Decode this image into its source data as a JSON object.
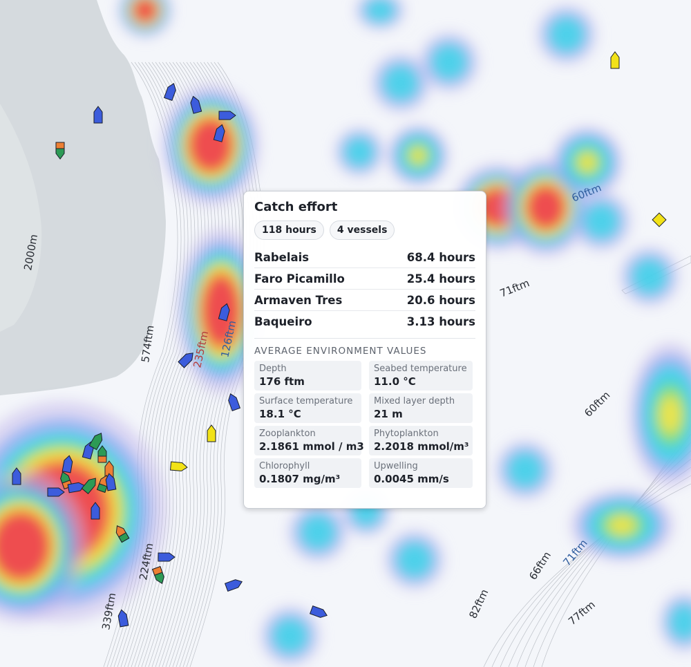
{
  "map": {
    "depth_labels": [
      "2000m",
      "574ftm",
      "235ftm",
      "126ftm",
      "224ftm",
      "339ftm",
      "60ftm",
      "71ftm",
      "60ftm",
      "71ftm",
      "66ftm",
      "82ftm",
      "77ftm"
    ]
  },
  "tooltip": {
    "title": "Catch effort",
    "chips": {
      "hours": "118 hours",
      "vessels": "4 vessels"
    },
    "vessels": [
      {
        "name": "Rabelais",
        "hours": "68.4 hours"
      },
      {
        "name": "Faro Picamillo",
        "hours": "25.4 hours"
      },
      {
        "name": "Armaven Tres",
        "hours": "20.6 hours"
      },
      {
        "name": "Baqueiro",
        "hours": "3.13 hours"
      }
    ],
    "env_title": "AVERAGE ENVIRONMENT VALUES",
    "env": [
      {
        "label": "Depth",
        "value": "176 ftm"
      },
      {
        "label": "Seabed temperature",
        "value": "11.0 °C"
      },
      {
        "label": "Surface temperature",
        "value": "18.1 °C"
      },
      {
        "label": "Mixed layer depth",
        "value": "21 m"
      },
      {
        "label": "Zooplankton",
        "value": "2.1861 mmol / m3"
      },
      {
        "label": "Phytoplankton",
        "value": "2.2018 mmol/m³"
      },
      {
        "label": "Chlorophyll",
        "value": "0.1807 mg/m³"
      },
      {
        "label": "Upwelling",
        "value": "0.0045 mm/s"
      }
    ]
  },
  "colors": {
    "land": "#d5dade",
    "sea": "#f4f6fa",
    "heat_high": "#ee4d50",
    "heat_mid": "#f0e34a",
    "heat_low": "#38d6e8",
    "vessel_blue": "#3c5cdc",
    "vessel_yellow": "#f2e218",
    "vessel_green": "#2d9a55",
    "vessel_orange": "#ed7f33"
  }
}
